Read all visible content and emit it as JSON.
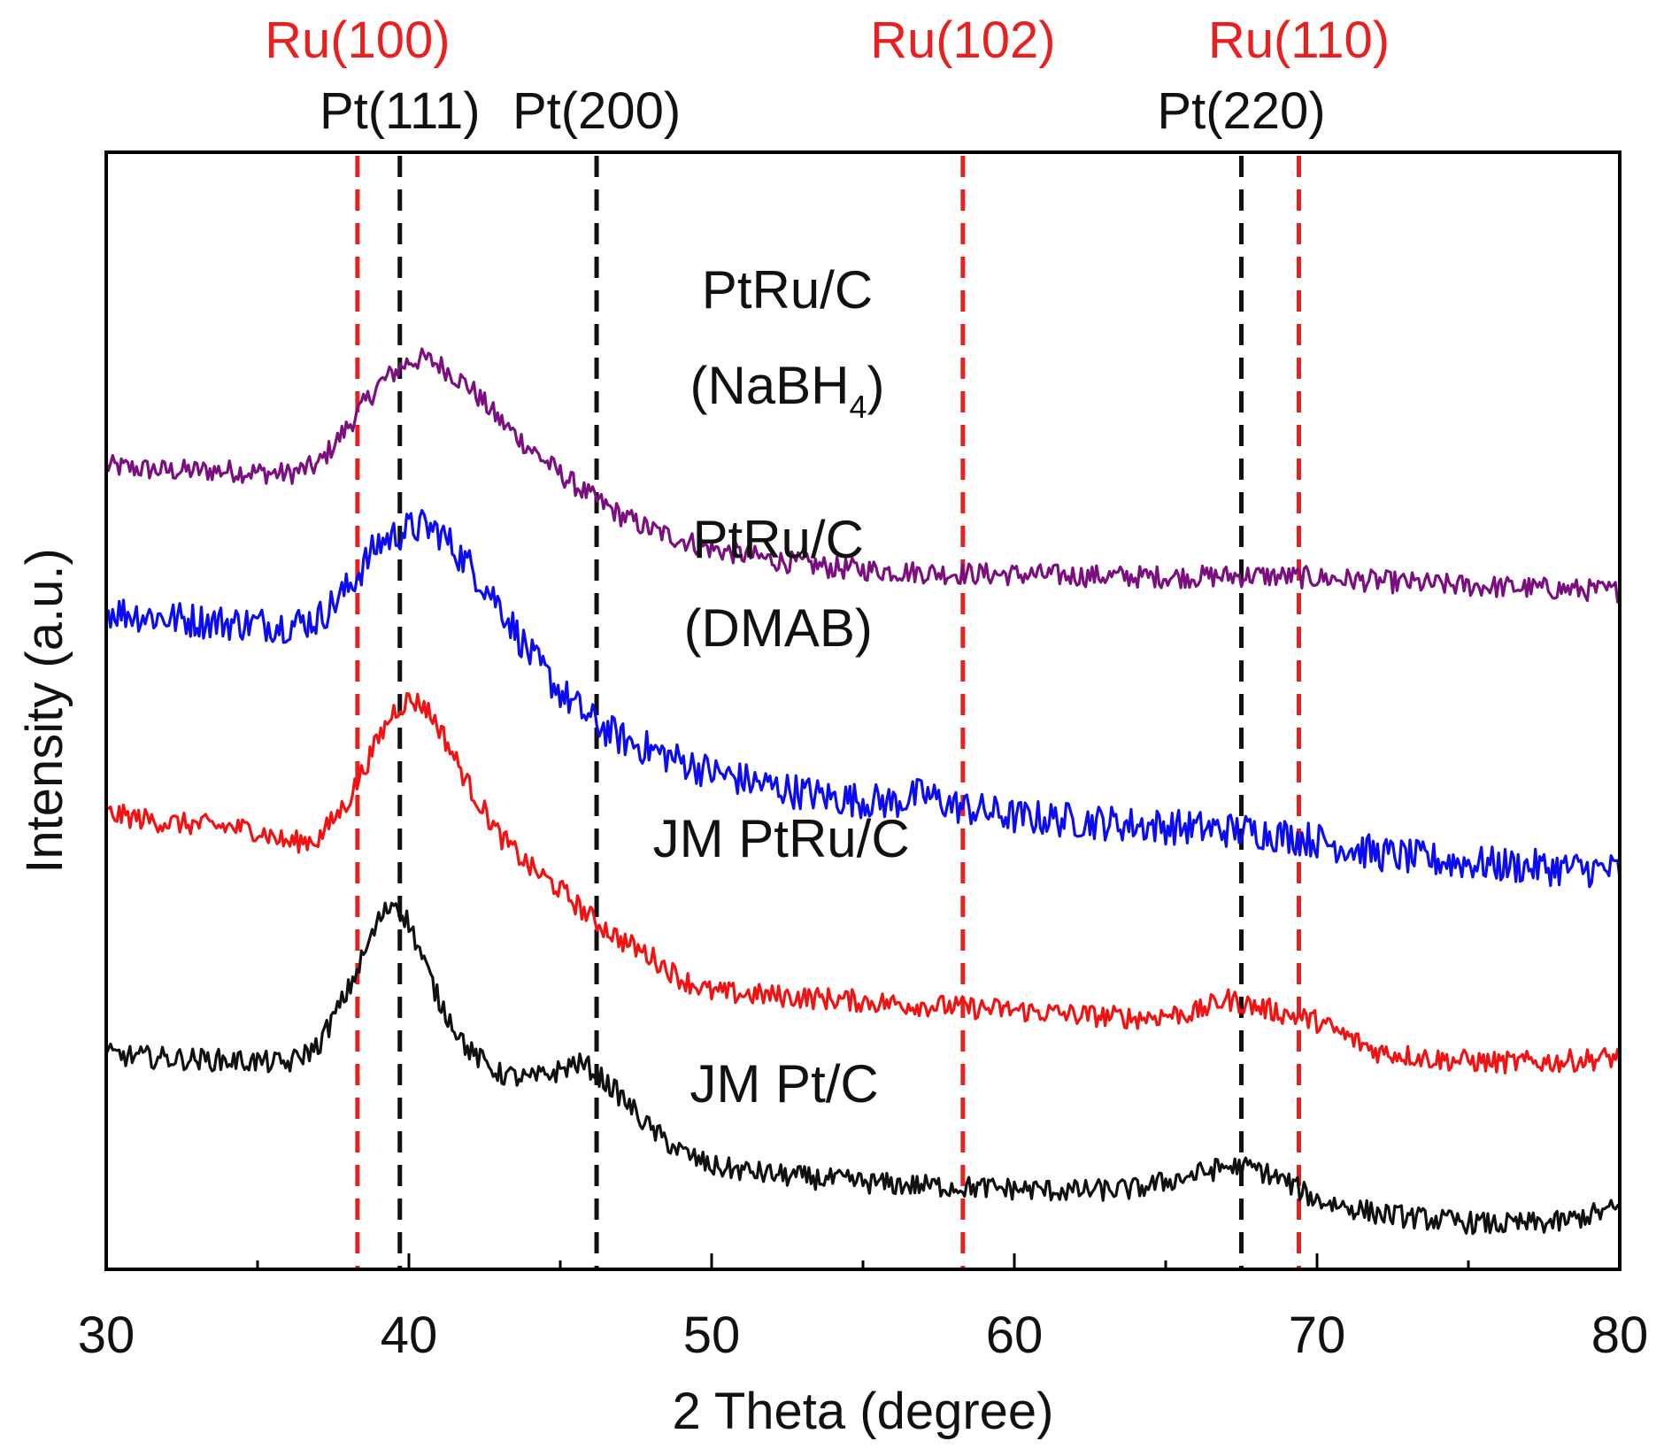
{
  "chart_data": {
    "type": "line",
    "xlabel": "2 Theta (degree)",
    "ylabel": "Intensity (a.u.)",
    "xlim": [
      30,
      80
    ],
    "ylim": [
      0,
      10
    ],
    "xticks": [
      30,
      40,
      50,
      60,
      70,
      80
    ],
    "y_ticks_shown": false,
    "grid": false,
    "legend": "none (series labelled inline)",
    "reference_lines": [
      {
        "label": "Ru(100)",
        "x": 38.3,
        "color": "#e8201f",
        "label_row": "top"
      },
      {
        "label": "Pt(111)",
        "x": 39.7,
        "color": "#111111",
        "label_row": "second"
      },
      {
        "label": "Pt(200)",
        "x": 46.2,
        "color": "#111111",
        "label_row": "second"
      },
      {
        "label": "Ru(102)",
        "x": 58.3,
        "color": "#e8201f",
        "label_row": "top"
      },
      {
        "label": "Pt(220)",
        "x": 67.5,
        "color": "#111111",
        "label_row": "second"
      },
      {
        "label": "Ru(110)",
        "x": 69.4,
        "color": "#e8201f",
        "label_row": "top"
      }
    ],
    "series": [
      {
        "name": "PtRu/C (NaBH4)",
        "label_lines": [
          "PtRu/C",
          "(NaBH",
          "4",
          ")"
        ],
        "color": "#7b0f7f",
        "x": [
          30,
          32,
          34,
          36,
          37,
          38,
          39,
          40,
          40.5,
          41,
          42,
          43,
          44,
          45,
          46,
          47,
          48,
          50,
          52,
          54,
          56,
          58,
          60,
          62,
          64,
          66,
          68,
          70,
          72,
          74,
          76,
          78,
          80
        ],
        "y": [
          7.19,
          7.15,
          7.15,
          7.12,
          7.2,
          7.55,
          7.92,
          8.13,
          8.15,
          8.1,
          7.9,
          7.6,
          7.35,
          7.12,
          6.92,
          6.75,
          6.62,
          6.45,
          6.35,
          6.28,
          6.25,
          6.23,
          6.22,
          6.21,
          6.2,
          6.2,
          6.21,
          6.19,
          6.16,
          6.13,
          6.11,
          6.09,
          6.07
        ]
      },
      {
        "name": "PtRu/C (DMAB)",
        "label_lines": [
          "PtRu/C",
          "(DMAB)"
        ],
        "color": "#0b0bf5",
        "x": [
          30,
          32,
          34,
          36,
          37,
          38,
          39,
          40,
          40.5,
          41,
          42,
          43,
          44,
          45,
          46,
          47,
          48,
          50,
          52,
          54,
          56,
          57,
          58,
          60,
          62,
          64,
          66,
          68,
          70,
          72,
          74,
          76,
          78,
          80
        ],
        "y": [
          5.9,
          5.83,
          5.79,
          5.77,
          5.82,
          6.1,
          6.5,
          6.63,
          6.65,
          6.6,
          6.3,
          5.95,
          5.5,
          5.17,
          4.92,
          4.75,
          4.65,
          4.45,
          4.32,
          4.22,
          4.18,
          4.25,
          4.15,
          4.05,
          4.02,
          3.98,
          3.95,
          3.92,
          3.84,
          3.72,
          3.66,
          3.62,
          3.59,
          3.57
        ]
      },
      {
        "name": "JM PtRu/C",
        "label_lines": [
          "JM PtRu/C"
        ],
        "color": "#f41111",
        "x": [
          30,
          32,
          34,
          35,
          36,
          37,
          38,
          39,
          39.5,
          40,
          40.5,
          41,
          42,
          43,
          44,
          45,
          46,
          47,
          48,
          49,
          50,
          52,
          54,
          56,
          58,
          60,
          62,
          64,
          66,
          67,
          68,
          70,
          71,
          72,
          74,
          76,
          78,
          80
        ],
        "y": [
          4.08,
          4.0,
          3.96,
          3.93,
          3.82,
          3.85,
          4.2,
          4.75,
          5.0,
          5.1,
          5.05,
          4.85,
          4.32,
          3.88,
          3.6,
          3.4,
          3.15,
          2.95,
          2.8,
          2.6,
          2.48,
          2.45,
          2.42,
          2.38,
          2.35,
          2.32,
          2.28,
          2.25,
          2.3,
          2.42,
          2.35,
          2.22,
          2.08,
          1.95,
          1.88,
          1.85,
          1.86,
          1.9
        ]
      },
      {
        "name": "JM Pt/C",
        "label_lines": [
          "JM Pt/C"
        ],
        "color": "#111111",
        "x": [
          30,
          32,
          34,
          35,
          36,
          37,
          38,
          39,
          39.5,
          40,
          41,
          42,
          43,
          44,
          45,
          45.5,
          46,
          47,
          48,
          49,
          50,
          52,
          54,
          56,
          58,
          60,
          62,
          64,
          66,
          67,
          68,
          69,
          70,
          72,
          74,
          76,
          78,
          80
        ],
        "y": [
          1.92,
          1.89,
          1.87,
          1.86,
          1.84,
          2.0,
          2.5,
          3.12,
          3.3,
          3.1,
          2.4,
          1.95,
          1.75,
          1.7,
          1.78,
          1.85,
          1.8,
          1.55,
          1.25,
          1.05,
          0.92,
          0.85,
          0.8,
          0.76,
          0.74,
          0.72,
          0.7,
          0.72,
          0.85,
          0.92,
          0.9,
          0.78,
          0.62,
          0.5,
          0.44,
          0.4,
          0.42,
          0.55
        ]
      }
    ]
  }
}
